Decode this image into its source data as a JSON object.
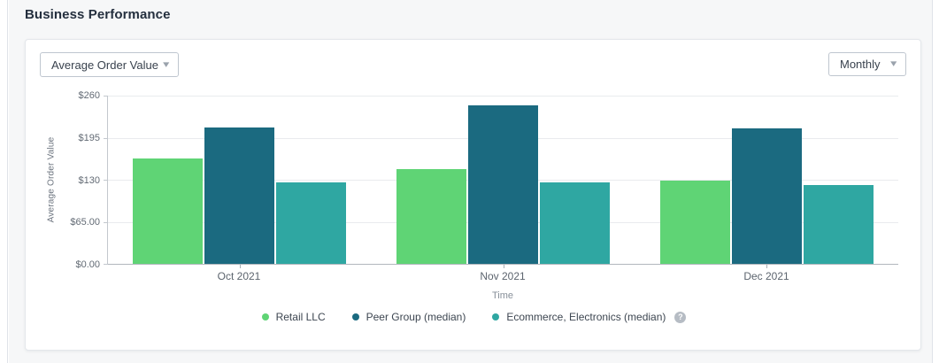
{
  "page": {
    "title": "Business Performance"
  },
  "controls": {
    "metric_dropdown": {
      "value": "Average Order Value"
    },
    "period_dropdown": {
      "value": "Monthly"
    }
  },
  "icons": {
    "chevron_down": "▾",
    "help": "?"
  },
  "chart_data": {
    "type": "bar",
    "title": "Business Performance",
    "categories": [
      "Oct 2021",
      "Nov 2021",
      "Dec 2021"
    ],
    "series": [
      {
        "name": "Retail LLC",
        "color": "#5fd475",
        "values": [
          163,
          147,
          128
        ]
      },
      {
        "name": "Peer Group (median)",
        "color": "#1b6a80",
        "values": [
          211,
          245,
          209
        ]
      },
      {
        "name": "Ecommerce, Electronics (median)",
        "color": "#2fa7a2",
        "values": [
          126,
          126,
          122
        ],
        "has_help_icon": true
      }
    ],
    "xlabel": "Time",
    "ylabel": "Average Order Value",
    "ylim": [
      0,
      260
    ],
    "yticks": [
      {
        "value": 0,
        "label": "$0.00"
      },
      {
        "value": 65,
        "label": "$65.00"
      },
      {
        "value": 130,
        "label": "$130"
      },
      {
        "value": 195,
        "label": "$195"
      },
      {
        "value": 260,
        "label": "$260"
      }
    ],
    "grid": true,
    "legend_position": "bottom"
  }
}
